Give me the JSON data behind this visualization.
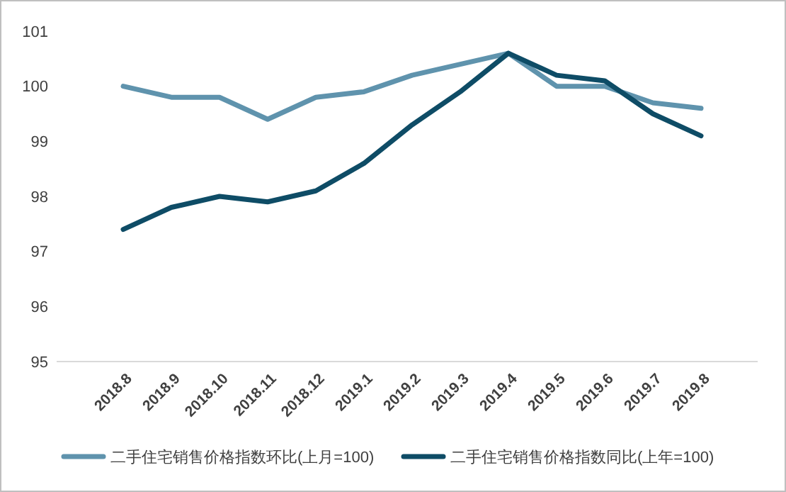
{
  "chart_data": {
    "type": "line",
    "categories": [
      "2018.8",
      "2018.9",
      "2018.10",
      "2018.11",
      "2018.12",
      "2019.1",
      "2019.2",
      "2019.3",
      "2019.4",
      "2019.5",
      "2019.6",
      "2019.7",
      "2019.8"
    ],
    "series": [
      {
        "name": "二手住宅销售价格指数环比(上月=100)",
        "color": "#5f93ad",
        "values": [
          100.0,
          99.8,
          99.8,
          99.4,
          99.8,
          99.9,
          100.2,
          100.4,
          100.6,
          100.0,
          100.0,
          99.7,
          99.6
        ]
      },
      {
        "name": "二手住宅销售价格指数同比(上年=100)",
        "color": "#0e4c66",
        "values": [
          97.4,
          97.8,
          98.0,
          97.9,
          98.1,
          98.6,
          99.3,
          99.9,
          100.6,
          100.2,
          100.1,
          99.5,
          99.1
        ]
      }
    ],
    "ylim": [
      95,
      101
    ],
    "yticks": [
      95,
      96,
      97,
      98,
      99,
      100,
      101
    ],
    "grid": false,
    "legend": "bottom",
    "marker": "none",
    "line_style": "solid"
  }
}
